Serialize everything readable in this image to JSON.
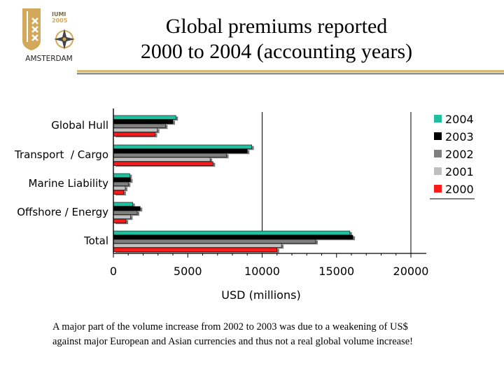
{
  "logo": {
    "line1": "IUMI",
    "line2": "2005",
    "city": "AMSTERDAM",
    "color": "#d4a85a"
  },
  "title": {
    "line1": "Global premiums reported",
    "line2": "2000 to 2004 (accounting years)"
  },
  "caption": {
    "line1": "A major part of the volume increase from 2002 to 2003 was due to a weakening of US$",
    "line2": "against major European and Asian currencies and thus not a real global volume increase!"
  },
  "chart_data": {
    "type": "bar",
    "orientation": "horizontal",
    "categories": [
      "Global Hull",
      "Transport  / Cargo",
      "Marine Liability",
      "Offshore / Energy",
      "Total"
    ],
    "series": [
      {
        "name": "2004",
        "color": "#1fbf9f",
        "values": [
          4200,
          9300,
          1100,
          1300,
          15900
        ]
      },
      {
        "name": "2003",
        "color": "#000000",
        "values": [
          4000,
          9000,
          1150,
          1800,
          16100
        ]
      },
      {
        "name": "2002",
        "color": "#7f7f7f",
        "values": [
          3500,
          7600,
          1000,
          1600,
          13600
        ]
      },
      {
        "name": "2001",
        "color": "#bfbfbf",
        "values": [
          2950,
          6500,
          800,
          1150,
          11300
        ]
      },
      {
        "name": "2000",
        "color": "#ff1a1a",
        "values": [
          2800,
          6700,
          700,
          850,
          11000
        ]
      }
    ],
    "xlabel": "USD (millions)",
    "xlim": [
      0,
      20000
    ],
    "xticks": [
      0,
      5000,
      10000,
      15000,
      20000
    ],
    "xtick_labels": [
      "0",
      "5000",
      "10000",
      "15000",
      "20000"
    ],
    "gridlines": [
      10000,
      20000
    ],
    "legend": "right"
  }
}
